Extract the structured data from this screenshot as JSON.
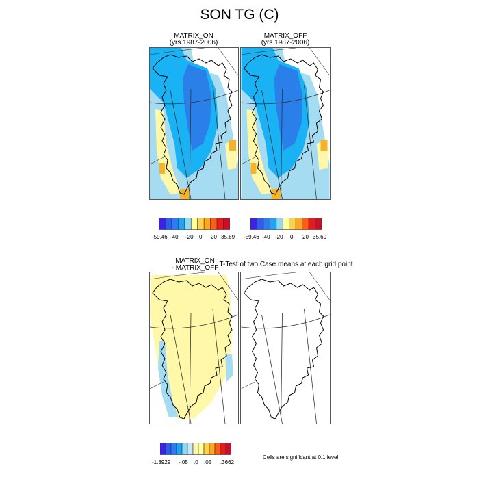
{
  "title": "SON TG (C)",
  "panels": {
    "on": {
      "title": "MATRIX_ON",
      "subtitle": "(yrs 1987-2006)"
    },
    "off": {
      "title": "MATRIX_OFF",
      "subtitle": "(yrs 1987-2006)"
    },
    "diff": {
      "title": "MATRIX_ON",
      "subtitle": "- MATRIX_OFF"
    },
    "ttest": {
      "title": "T-Test of two Case means at each grid point"
    }
  },
  "colorbar_top": {
    "colors": [
      "#3b22e8",
      "#2f5cf0",
      "#2d7cf5",
      "#1ba6f5",
      "#8ed7f5",
      "#ffff9e",
      "#ffd24d",
      "#ffa81c",
      "#ff5d14",
      "#e81a1a",
      "#c8102a"
    ],
    "labels": [
      "-59.46",
      "-40",
      "-20",
      "0",
      "20",
      "35.69"
    ]
  },
  "colorbar_bottom": {
    "colors": [
      "#3b22e8",
      "#2f5cf0",
      "#2d7cf5",
      "#1ba6f5",
      "#8ed7f5",
      "#c9e8f5",
      "#fff6b0",
      "#ffff9e",
      "#ffd24d",
      "#ffa81c",
      "#ff5d14",
      "#e81a1a",
      "#c8102a"
    ],
    "labels": [
      "-1.3929",
      "-.05",
      ".0",
      ".05",
      ".3662"
    ]
  },
  "note": "Cells are significant at 0.1 level",
  "palette": {
    "dark_blue": "#2b7fe8",
    "mid_blue": "#19b2f5",
    "light_blue": "#a6dcf2",
    "yellow": "#fff8a8",
    "orange": "#f4b329",
    "land_outline": "#000000"
  }
}
